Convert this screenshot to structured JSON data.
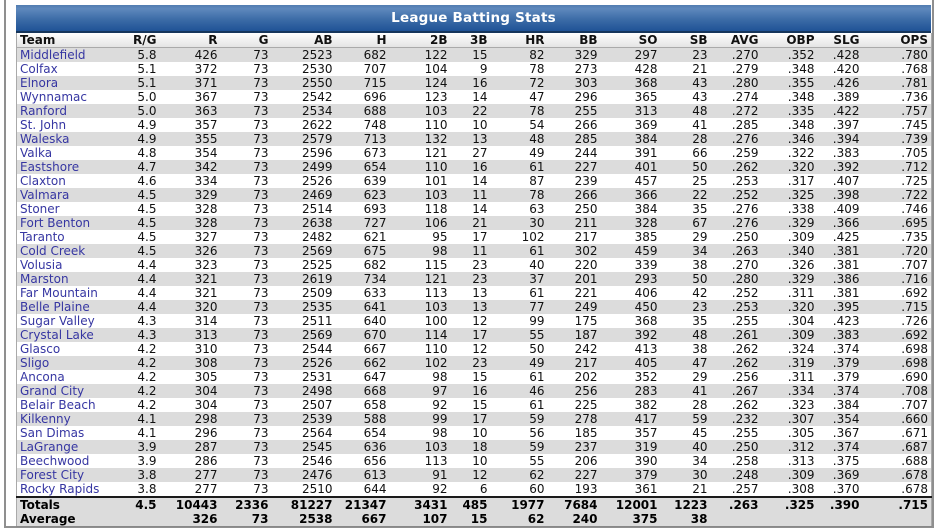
{
  "title": "League Batting Stats",
  "colors": {
    "title_bar_top": "#5f89bd",
    "title_bar_bottom": "#1f5296",
    "title_bar_border": "#16365c",
    "row_stripe": "#dcdcdc",
    "team_link": "#3636a2",
    "frame_border": "#8f8f8f"
  },
  "table": {
    "columns": [
      "Team",
      "R/G",
      "R",
      "G",
      "AB",
      "H",
      "2B",
      "3B",
      "HR",
      "BB",
      "SO",
      "SB",
      "AVG",
      "OBP",
      "SLG",
      "OPS"
    ],
    "rows": [
      [
        "Middlefield",
        "5.8",
        "426",
        "73",
        "2523",
        "682",
        "122",
        "15",
        "82",
        "329",
        "297",
        "23",
        ".270",
        ".352",
        ".428",
        ".780"
      ],
      [
        "Colfax",
        "5.1",
        "372",
        "73",
        "2530",
        "707",
        "104",
        "9",
        "78",
        "273",
        "428",
        "21",
        ".279",
        ".348",
        ".420",
        ".768"
      ],
      [
        "Elnora",
        "5.1",
        "371",
        "73",
        "2550",
        "715",
        "124",
        "16",
        "72",
        "303",
        "368",
        "43",
        ".280",
        ".355",
        ".426",
        ".781"
      ],
      [
        "Wynnamac",
        "5.0",
        "367",
        "73",
        "2542",
        "696",
        "123",
        "14",
        "47",
        "296",
        "365",
        "43",
        ".274",
        ".348",
        ".389",
        ".736"
      ],
      [
        "Ranford",
        "5.0",
        "363",
        "73",
        "2534",
        "688",
        "103",
        "22",
        "78",
        "255",
        "313",
        "48",
        ".272",
        ".335",
        ".422",
        ".757"
      ],
      [
        "St. John",
        "4.9",
        "357",
        "73",
        "2622",
        "748",
        "110",
        "10",
        "54",
        "266",
        "369",
        "41",
        ".285",
        ".348",
        ".397",
        ".745"
      ],
      [
        "Waleska",
        "4.9",
        "355",
        "73",
        "2579",
        "713",
        "132",
        "13",
        "48",
        "285",
        "384",
        "28",
        ".276",
        ".346",
        ".394",
        ".739"
      ],
      [
        "Valka",
        "4.8",
        "354",
        "73",
        "2596",
        "673",
        "121",
        "27",
        "49",
        "244",
        "391",
        "66",
        ".259",
        ".322",
        ".383",
        ".705"
      ],
      [
        "Eastshore",
        "4.7",
        "342",
        "73",
        "2499",
        "654",
        "110",
        "16",
        "61",
        "227",
        "401",
        "50",
        ".262",
        ".320",
        ".392",
        ".712"
      ],
      [
        "Claxton",
        "4.6",
        "334",
        "73",
        "2526",
        "639",
        "101",
        "14",
        "87",
        "239",
        "457",
        "25",
        ".253",
        ".317",
        ".407",
        ".725"
      ],
      [
        "Valmara",
        "4.5",
        "329",
        "73",
        "2469",
        "623",
        "103",
        "11",
        "78",
        "266",
        "366",
        "22",
        ".252",
        ".325",
        ".398",
        ".722"
      ],
      [
        "Stoner",
        "4.5",
        "328",
        "73",
        "2514",
        "693",
        "118",
        "14",
        "63",
        "250",
        "384",
        "35",
        ".276",
        ".338",
        ".409",
        ".746"
      ],
      [
        "Fort Benton",
        "4.5",
        "328",
        "73",
        "2638",
        "727",
        "106",
        "21",
        "30",
        "211",
        "328",
        "67",
        ".276",
        ".329",
        ".366",
        ".695"
      ],
      [
        "Taranto",
        "4.5",
        "327",
        "73",
        "2482",
        "621",
        "95",
        "17",
        "102",
        "217",
        "385",
        "29",
        ".250",
        ".309",
        ".425",
        ".735"
      ],
      [
        "Cold Creek",
        "4.5",
        "326",
        "73",
        "2569",
        "675",
        "98",
        "11",
        "61",
        "302",
        "459",
        "34",
        ".263",
        ".340",
        ".381",
        ".720"
      ],
      [
        "Volusia",
        "4.4",
        "323",
        "73",
        "2525",
        "682",
        "115",
        "23",
        "40",
        "220",
        "339",
        "38",
        ".270",
        ".326",
        ".381",
        ".707"
      ],
      [
        "Marston",
        "4.4",
        "321",
        "73",
        "2619",
        "734",
        "121",
        "23",
        "37",
        "201",
        "293",
        "50",
        ".280",
        ".329",
        ".386",
        ".716"
      ],
      [
        "Far Mountain",
        "4.4",
        "321",
        "73",
        "2509",
        "633",
        "113",
        "13",
        "61",
        "221",
        "406",
        "42",
        ".252",
        ".311",
        ".381",
        ".692"
      ],
      [
        "Belle Plaine",
        "4.4",
        "320",
        "73",
        "2535",
        "641",
        "103",
        "13",
        "77",
        "249",
        "450",
        "23",
        ".253",
        ".320",
        ".395",
        ".715"
      ],
      [
        "Sugar Valley",
        "4.3",
        "314",
        "73",
        "2511",
        "640",
        "100",
        "12",
        "99",
        "175",
        "368",
        "35",
        ".255",
        ".304",
        ".423",
        ".726"
      ],
      [
        "Crystal Lake",
        "4.3",
        "313",
        "73",
        "2569",
        "670",
        "114",
        "17",
        "55",
        "187",
        "392",
        "48",
        ".261",
        ".309",
        ".383",
        ".692"
      ],
      [
        "Glasco",
        "4.2",
        "310",
        "73",
        "2544",
        "667",
        "110",
        "12",
        "50",
        "242",
        "413",
        "38",
        ".262",
        ".324",
        ".374",
        ".698"
      ],
      [
        "Sligo",
        "4.2",
        "308",
        "73",
        "2526",
        "662",
        "102",
        "23",
        "49",
        "217",
        "405",
        "47",
        ".262",
        ".319",
        ".379",
        ".698"
      ],
      [
        "Ancona",
        "4.2",
        "305",
        "73",
        "2531",
        "647",
        "98",
        "15",
        "61",
        "202",
        "352",
        "29",
        ".256",
        ".311",
        ".379",
        ".690"
      ],
      [
        "Grand City",
        "4.2",
        "304",
        "73",
        "2498",
        "668",
        "97",
        "16",
        "46",
        "256",
        "283",
        "41",
        ".267",
        ".334",
        ".374",
        ".708"
      ],
      [
        "Belair Beach",
        "4.2",
        "304",
        "73",
        "2507",
        "658",
        "92",
        "15",
        "61",
        "225",
        "382",
        "28",
        ".262",
        ".323",
        ".384",
        ".707"
      ],
      [
        "Kilkenny",
        "4.1",
        "298",
        "73",
        "2539",
        "588",
        "99",
        "17",
        "59",
        "278",
        "417",
        "59",
        ".232",
        ".307",
        ".354",
        ".660"
      ],
      [
        "San Dimas",
        "4.1",
        "296",
        "73",
        "2564",
        "654",
        "98",
        "10",
        "56",
        "185",
        "357",
        "45",
        ".255",
        ".305",
        ".367",
        ".671"
      ],
      [
        "LaGrange",
        "3.9",
        "287",
        "73",
        "2545",
        "636",
        "103",
        "18",
        "59",
        "237",
        "319",
        "40",
        ".250",
        ".312",
        ".374",
        ".687"
      ],
      [
        "Beechwood",
        "3.9",
        "286",
        "73",
        "2546",
        "656",
        "113",
        "10",
        "55",
        "206",
        "390",
        "34",
        ".258",
        ".313",
        ".375",
        ".688"
      ],
      [
        "Forest City",
        "3.8",
        "277",
        "73",
        "2476",
        "613",
        "91",
        "12",
        "62",
        "227",
        "379",
        "30",
        ".248",
        ".309",
        ".369",
        ".678"
      ],
      [
        "Rocky Rapids",
        "3.8",
        "277",
        "73",
        "2510",
        "644",
        "92",
        "6",
        "60",
        "193",
        "361",
        "21",
        ".257",
        ".308",
        ".370",
        ".678"
      ]
    ],
    "totals": [
      "Totals",
      "4.5",
      "10443",
      "2336",
      "81227",
      "21347",
      "3431",
      "485",
      "1977",
      "7684",
      "12001",
      "1223",
      ".263",
      ".325",
      ".390",
      ".715"
    ],
    "average": [
      "Average",
      "",
      "326",
      "73",
      "2538",
      "667",
      "107",
      "15",
      "62",
      "240",
      "375",
      "38",
      "",
      "",
      "",
      ""
    ]
  }
}
